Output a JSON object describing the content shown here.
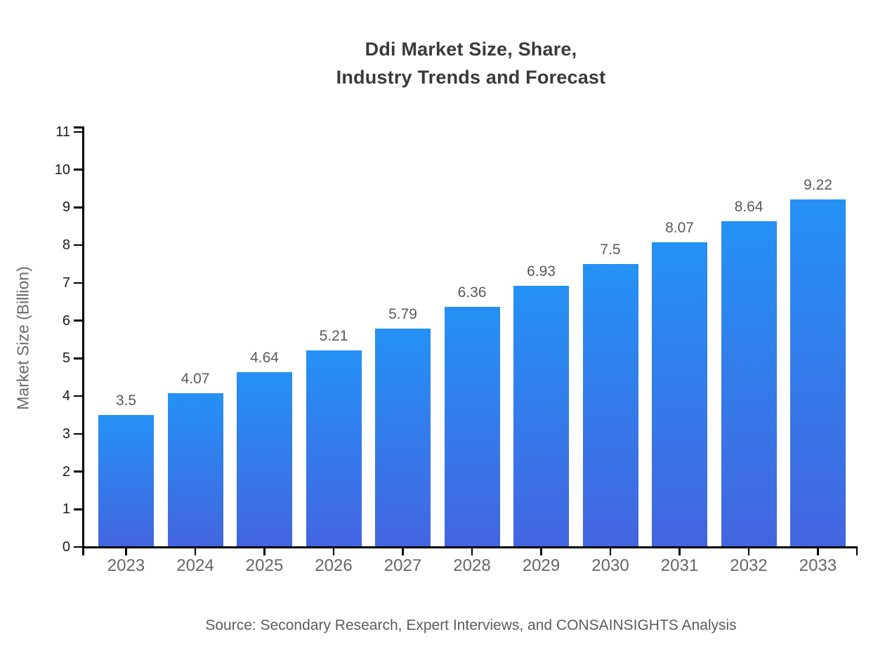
{
  "title": "Ddi Market Size, Share,\nIndustry Trends and Forecast",
  "source_note": "Source: Secondary Research, Expert Interviews, and CONSAINSIGHTS Analysis",
  "colors": {
    "background": "#ffffff",
    "bar_gradient_top": "#2591f4",
    "bar_gradient_bottom": "#4365e0",
    "axis": "#000000",
    "title_text": "#3a3a3a",
    "ytick_text": "#1a1a1a",
    "category_text": "#666666",
    "value_label_text": "#5a5a5a",
    "axis_label_text": "#6a6a6a",
    "source_text": "#5c5c5c"
  },
  "chart_data": {
    "type": "bar",
    "title": "Ddi Market Size, Share, Industry Trends and Forecast",
    "categories": [
      "2023",
      "2024",
      "2025",
      "2026",
      "2027",
      "2028",
      "2029",
      "2030",
      "2031",
      "2032",
      "2033"
    ],
    "values": [
      3.5,
      4.07,
      4.64,
      5.21,
      5.79,
      6.36,
      6.93,
      7.5,
      8.07,
      8.64,
      9.22
    ],
    "value_labels": [
      "3.5",
      "4.07",
      "4.64",
      "5.21",
      "5.79",
      "6.36",
      "6.93",
      "7.5",
      "8.07",
      "8.64",
      "9.22"
    ],
    "xlabel": "",
    "ylabel": "Market Size (Billion)",
    "ylim": [
      0,
      11.06
    ],
    "yticks": [
      0,
      1,
      2,
      3,
      4,
      5,
      6,
      7,
      8,
      9,
      10,
      11
    ],
    "grid": false,
    "legend": "none",
    "bar_style": "vertical gradient, light blue top to royal blue bottom"
  }
}
